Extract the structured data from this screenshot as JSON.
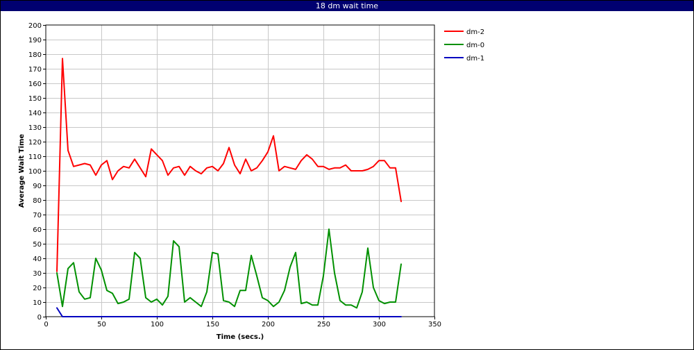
{
  "window": {
    "title": "18 dm wait time"
  },
  "chart_data": {
    "type": "line",
    "title": "18 dm wait time",
    "xlabel": "Time (secs.)",
    "ylabel": "Average Wait Time",
    "xlim": [
      0,
      350
    ],
    "ylim": [
      0,
      200
    ],
    "xticks": [
      0,
      50,
      100,
      150,
      200,
      250,
      300,
      350
    ],
    "yticks": [
      0,
      10,
      20,
      30,
      40,
      50,
      60,
      70,
      80,
      90,
      100,
      110,
      120,
      130,
      140,
      150,
      160,
      170,
      180,
      190,
      200
    ],
    "grid": true,
    "legend_position": "top-right",
    "series": [
      {
        "name": "dm-2",
        "color": "#ff0000",
        "x": [
          10,
          15,
          20,
          25,
          30,
          35,
          40,
          45,
          50,
          55,
          60,
          65,
          70,
          75,
          80,
          85,
          90,
          95,
          100,
          105,
          110,
          115,
          120,
          125,
          130,
          135,
          140,
          145,
          150,
          155,
          160,
          165,
          170,
          175,
          180,
          185,
          190,
          195,
          200,
          205,
          210,
          215,
          220,
          225,
          230,
          235,
          240,
          245,
          250,
          255,
          260,
          265,
          270,
          275,
          280,
          285,
          290,
          295,
          300,
          305,
          310,
          315,
          320
        ],
        "y": [
          31,
          177,
          114,
          103,
          104,
          105,
          104,
          97,
          104,
          107,
          94,
          100,
          103,
          102,
          108,
          102,
          96,
          115,
          111,
          107,
          97,
          102,
          103,
          97,
          103,
          100,
          98,
          102,
          103,
          100,
          105,
          116,
          104,
          98,
          108,
          100,
          102,
          107,
          113,
          124,
          100,
          103,
          102,
          101,
          107,
          111,
          108,
          103,
          103,
          101,
          102,
          102,
          104,
          100,
          100,
          100,
          101,
          103,
          107,
          107,
          102,
          102,
          79
        ]
      },
      {
        "name": "dm-0",
        "color": "#009000",
        "x": [
          10,
          15,
          20,
          25,
          30,
          35,
          40,
          45,
          50,
          55,
          60,
          65,
          70,
          75,
          80,
          85,
          90,
          95,
          100,
          105,
          110,
          115,
          120,
          125,
          130,
          135,
          140,
          145,
          150,
          155,
          160,
          165,
          170,
          175,
          180,
          185,
          190,
          195,
          200,
          205,
          210,
          215,
          220,
          225,
          230,
          235,
          240,
          245,
          250,
          255,
          260,
          265,
          270,
          275,
          280,
          285,
          290,
          295,
          300,
          305,
          310,
          315,
          320
        ],
        "y": [
          30,
          7,
          33,
          37,
          17,
          12,
          13,
          40,
          32,
          18,
          16,
          9,
          10,
          12,
          44,
          40,
          13,
          10,
          12,
          8,
          14,
          52,
          48,
          10,
          13,
          10,
          7,
          17,
          44,
          43,
          11,
          10,
          7,
          18,
          18,
          42,
          28,
          13,
          11,
          7,
          10,
          18,
          34,
          44,
          9,
          10,
          8,
          8,
          28,
          60,
          30,
          11,
          8,
          8,
          6,
          17,
          47,
          20,
          11,
          9,
          10,
          10,
          36
        ]
      },
      {
        "name": "dm-1",
        "color": "#0000c0",
        "x": [
          10,
          15,
          20,
          320
        ],
        "y": [
          6,
          0,
          0,
          0
        ]
      }
    ]
  }
}
